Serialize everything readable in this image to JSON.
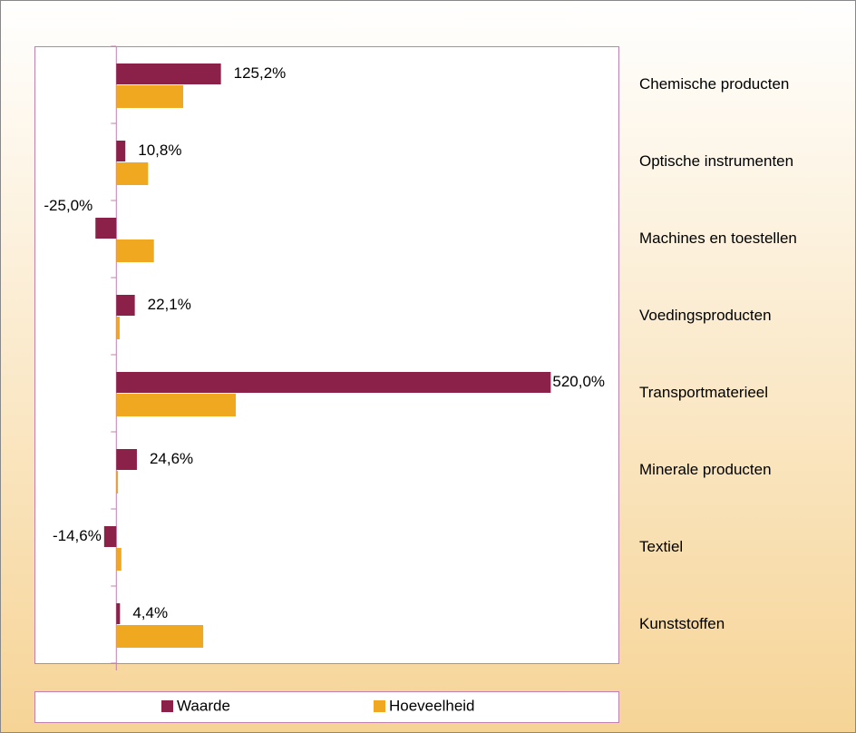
{
  "chart_data": {
    "type": "bar",
    "orientation": "horizontal",
    "categories": [
      "Chemische producten",
      "Optische instrumenten",
      "Machines en toestellen",
      "Voedingsproducten",
      "Transportmaterieel",
      "Minerale producten",
      "Textiel",
      "Kunststoffen"
    ],
    "series": [
      {
        "name": "Waarde",
        "color": "#8b2048",
        "values": [
          125.2,
          10.8,
          -25.0,
          22.1,
          520.0,
          24.6,
          -14.6,
          4.4
        ],
        "value_labels": [
          "125,2%",
          "10,8%",
          "-25,0%",
          "22,1%",
          "520,0%",
          "24,6%",
          "-14,6%",
          "4,4%"
        ]
      },
      {
        "name": "Hoeveelheid",
        "color": "#f0a820",
        "values": [
          80,
          38,
          45,
          4,
          143,
          2,
          6,
          104
        ]
      }
    ],
    "xlim": [
      -98,
      601
    ],
    "legend": "bottom"
  }
}
